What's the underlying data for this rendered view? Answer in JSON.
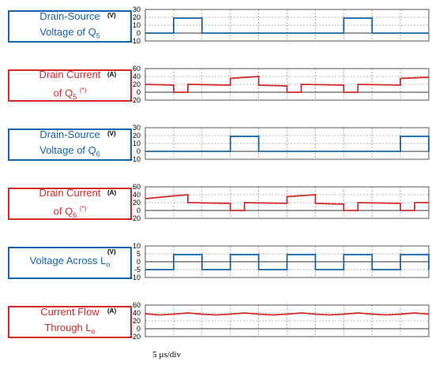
{
  "chart_data": [
    {
      "type": "line",
      "label_lines": [
        "Drain-Source",
        "Voltage of Q5"
      ],
      "label_color": "#1464ad",
      "unit": "(V)",
      "yticks": [
        30,
        20,
        10,
        0,
        -10
      ],
      "ylim": [
        -10,
        30
      ],
      "series": [
        {
          "color": "#1464ad",
          "points": [
            [
              0,
              0
            ],
            [
              1,
              0
            ],
            [
              1,
              19
            ],
            [
              2,
              19
            ],
            [
              2,
              0
            ],
            [
              7,
              0
            ],
            [
              7,
              19
            ],
            [
              8,
              19
            ],
            [
              8,
              0
            ],
            [
              10,
              0
            ]
          ]
        }
      ]
    },
    {
      "type": "line",
      "label_lines": [
        "Drain Current",
        "of Q5 (*)"
      ],
      "label_color": "#d42a2a",
      "unit": "(A)",
      "yticks": [
        60,
        40,
        20,
        0,
        -20
      ],
      "ylim": [
        -20,
        60
      ],
      "series": [
        {
          "color": "#d42a2a",
          "points": [
            [
              0,
              20
            ],
            [
              1,
              18
            ],
            [
              1,
              0
            ],
            [
              1.5,
              0
            ],
            [
              1.5,
              20
            ],
            [
              3,
              18
            ],
            [
              3,
              35
            ],
            [
              4,
              40
            ],
            [
              4,
              18
            ],
            [
              5,
              16
            ],
            [
              5,
              0
            ],
            [
              5.5,
              0
            ],
            [
              5.5,
              20
            ],
            [
              7,
              18
            ],
            [
              7,
              0
            ],
            [
              7.5,
              0
            ],
            [
              7.5,
              20
            ],
            [
              9,
              18
            ],
            [
              9,
              35
            ],
            [
              10,
              38
            ]
          ]
        }
      ]
    },
    {
      "type": "line",
      "label_lines": [
        "Drain-Source",
        "Voltage of Q6"
      ],
      "label_color": "#1464ad",
      "unit": "(V)",
      "yticks": [
        30,
        20,
        10,
        0,
        -10
      ],
      "ylim": [
        -10,
        30
      ],
      "series": [
        {
          "color": "#1464ad",
          "points": [
            [
              0,
              0
            ],
            [
              3,
              0
            ],
            [
              3,
              19
            ],
            [
              4,
              19
            ],
            [
              4,
              0
            ],
            [
              9,
              0
            ],
            [
              9,
              19
            ],
            [
              10,
              19
            ],
            [
              10,
              0
            ]
          ]
        }
      ]
    },
    {
      "type": "line",
      "label_lines": [
        "Drain Current",
        "of Q6 (*)"
      ],
      "label_color": "#d42a2a",
      "unit": "(A)",
      "yticks": [
        60,
        40,
        20,
        0,
        -20
      ],
      "ylim": [
        -20,
        60
      ],
      "series": [
        {
          "color": "#d42a2a",
          "points": [
            [
              0,
              30
            ],
            [
              1,
              37
            ],
            [
              1.5,
              40
            ],
            [
              1.5,
              20
            ],
            [
              3,
              18
            ],
            [
              3,
              0
            ],
            [
              3.5,
              0
            ],
            [
              3.5,
              20
            ],
            [
              5,
              18
            ],
            [
              5,
              35
            ],
            [
              6,
              40
            ],
            [
              6,
              18
            ],
            [
              7,
              16
            ],
            [
              7,
              0
            ],
            [
              7.5,
              0
            ],
            [
              7.5,
              20
            ],
            [
              9,
              18
            ],
            [
              9,
              0
            ],
            [
              9.5,
              0
            ],
            [
              9.5,
              20
            ],
            [
              10,
              20
            ]
          ]
        }
      ]
    },
    {
      "type": "line",
      "label_lines": [
        "Voltage Across Lo"
      ],
      "label_color": "#1464ad",
      "unit": "(V)",
      "yticks": [
        10,
        5,
        0,
        -5,
        -10
      ],
      "ylim": [
        -10,
        10
      ],
      "series": [
        {
          "color": "#1464ad",
          "points": [
            [
              0,
              -5
            ],
            [
              1,
              -5
            ],
            [
              1,
              4.5
            ],
            [
              2,
              4.5
            ],
            [
              2,
              -5
            ],
            [
              3,
              -5
            ],
            [
              3,
              4.5
            ],
            [
              4,
              4.5
            ],
            [
              4,
              -5
            ],
            [
              5,
              -5
            ],
            [
              5,
              4.5
            ],
            [
              6,
              4.5
            ],
            [
              6,
              -5
            ],
            [
              7,
              -5
            ],
            [
              7,
              4.5
            ],
            [
              8,
              4.5
            ],
            [
              8,
              -5
            ],
            [
              9,
              -5
            ],
            [
              9,
              4.5
            ],
            [
              10,
              4.5
            ],
            [
              10,
              -5
            ]
          ]
        }
      ]
    },
    {
      "type": "line",
      "label_lines": [
        "Current Flow",
        "Through Lo"
      ],
      "label_color": "#d42a2a",
      "unit": "(A)",
      "yticks": [
        60,
        40,
        20,
        0,
        -20
      ],
      "ylim": [
        -20,
        60
      ],
      "series": [
        {
          "color": "#d42a2a",
          "points": [
            [
              0,
              38
            ],
            [
              0.5,
              35
            ],
            [
              1,
              37
            ],
            [
              1.5,
              40
            ],
            [
              2,
              37
            ],
            [
              2.5,
              35
            ],
            [
              3,
              37
            ],
            [
              3.5,
              40
            ],
            [
              4,
              37
            ],
            [
              4.5,
              35
            ],
            [
              5,
              37
            ],
            [
              5.5,
              40
            ],
            [
              6,
              37
            ],
            [
              6.5,
              35
            ],
            [
              7,
              37
            ],
            [
              7.5,
              40
            ],
            [
              8,
              37
            ],
            [
              8.5,
              35
            ],
            [
              9,
              37
            ],
            [
              9.5,
              40
            ],
            [
              10,
              37
            ]
          ]
        }
      ]
    }
  ],
  "timebase": "5 µs/div"
}
